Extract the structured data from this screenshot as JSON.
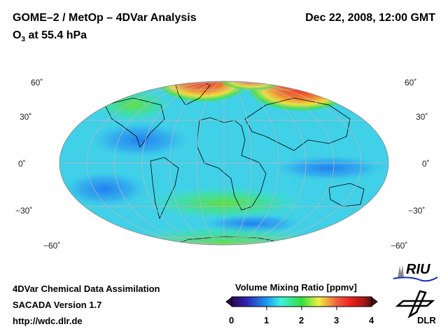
{
  "header": {
    "title": "GOME–2 / MetOp – 4DVar Analysis",
    "species_main": "O",
    "species_sub": "3",
    "level": " at 55.4 hPa",
    "date": "Dec 22, 2008, 12:00 GMT"
  },
  "map": {
    "lat_labels_left": [
      "60˚",
      "30˚",
      "0˚",
      "−30˚",
      "−60˚"
    ],
    "lat_labels_right": [
      "60˚",
      "30˚",
      "0˚",
      "−30˚",
      "−60˚"
    ]
  },
  "colorbar": {
    "title": "Volume Mixing Ratio [ppmv]",
    "ticks": [
      "0",
      "1",
      "2",
      "3",
      "4"
    ],
    "min": 0,
    "max": 4,
    "colors": [
      "#2a0a4a",
      "#2a2ad0",
      "#1a9af0",
      "#3ef0e0",
      "#30e040",
      "#f0f040",
      "#f09040",
      "#f02020",
      "#a01818",
      "#4a1010"
    ]
  },
  "footer": {
    "line1": "4DVar Chemical Data Assimilation",
    "line2": "SACADA Version 1.7",
    "line3": "http://wdc.dlr.de"
  },
  "logos": {
    "riu": "RIU",
    "dlr": "DLR"
  }
}
